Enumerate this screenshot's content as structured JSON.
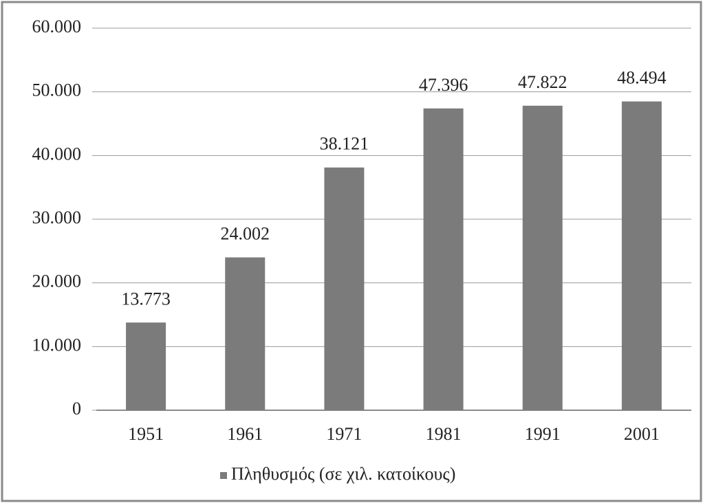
{
  "chart_data": {
    "type": "bar",
    "categories": [
      "1951",
      "1961",
      "1971",
      "1981",
      "1991",
      "2001"
    ],
    "series": [
      {
        "name": "Πληθυσμός (σε χιλ. κατοίκους)",
        "color": "#7b7b7b",
        "values": [
          13773,
          24002,
          38121,
          47396,
          47822,
          48494
        ],
        "value_labels": [
          "13.773",
          "24.002",
          "38.121",
          "47.396",
          "47.822",
          "48.494"
        ]
      }
    ],
    "ylim": [
      0,
      60000
    ],
    "yticks": [
      0,
      {
        "value": 10000,
        "label": "10.000"
      },
      {
        "value": 20000,
        "label": "20.000"
      },
      {
        "value": 30000,
        "label": "30.000"
      },
      {
        "value": 40000,
        "label": "40.000"
      },
      {
        "value": 50000,
        "label": "50.000"
      },
      {
        "value": 60000,
        "label": "60.000"
      }
    ],
    "grid": true,
    "legend": "bottom"
  }
}
